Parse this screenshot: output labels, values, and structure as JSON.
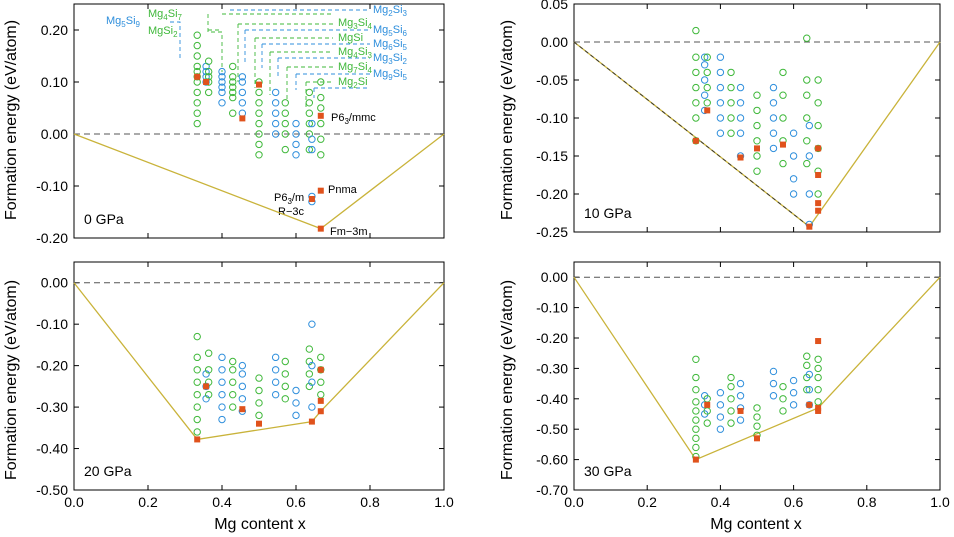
{
  "colors": {
    "green": "#3fb83a",
    "blue": "#2f8fdc",
    "red": "#e0521c",
    "hull": "#c9b33a"
  },
  "axes": {
    "xlabel": "Mg content x",
    "ylabel": "Formation energy (eV/atom)"
  },
  "legend": {
    "green": [
      "Mg4Si7",
      "MgSi2",
      "Mg3Si4",
      "MgSi",
      "Mg4Si3",
      "Mg7Si4",
      "Mg2Si"
    ],
    "blue": [
      "Mg5Si9",
      "Mg2Si3",
      "Mg5Si6",
      "Mg6Si5",
      "Mg3Si2",
      "Mg9Si5"
    ]
  },
  "annotations": [
    "P63/mmc",
    "Pnma",
    "P63/m",
    "R-3c",
    "Fm-3m"
  ],
  "chart_data": [
    {
      "type": "scatter",
      "label": "0 GPa",
      "xlim": [
        0,
        1
      ],
      "ylim": [
        -0.2,
        0.25
      ],
      "x_ticks": [
        "",
        "",
        "",
        "",
        "",
        ""
      ],
      "y_ticks": [
        "-0.20",
        "-0.10",
        "0.00",
        "0.10",
        "0.20"
      ],
      "hull": [
        [
          0,
          0
        ],
        [
          0.667,
          -0.182
        ],
        [
          1,
          0
        ]
      ],
      "series": [
        {
          "x": 0.333,
          "ys": [
            0.02,
            0.04,
            0.06,
            0.08,
            0.1,
            0.11,
            0.12,
            0.13,
            0.15,
            0.17,
            0.19
          ]
        },
        {
          "x": 0.357,
          "ys": [
            0.1,
            0.11,
            0.12,
            0.13
          ]
        },
        {
          "x": 0.364,
          "ys": [
            0.08,
            0.1,
            0.11,
            0.12,
            0.14
          ]
        },
        {
          "x": 0.4,
          "ys": [
            0.06,
            0.08,
            0.09,
            0.1,
            0.11,
            0.12
          ]
        },
        {
          "x": 0.429,
          "ys": [
            0.04,
            0.07,
            0.08,
            0.09,
            0.1,
            0.11,
            0.13
          ]
        },
        {
          "x": 0.455,
          "ys": [
            0.04,
            0.06,
            0.08,
            0.1,
            0.11
          ]
        },
        {
          "x": 0.5,
          "ys": [
            -0.04,
            -0.02,
            0.0,
            0.02,
            0.04,
            0.06,
            0.08,
            0.1
          ]
        },
        {
          "x": 0.545,
          "ys": [
            0.0,
            0.02,
            0.04,
            0.06,
            0.08
          ]
        },
        {
          "x": 0.571,
          "ys": [
            -0.03,
            0.0,
            0.02,
            0.04,
            0.06
          ]
        },
        {
          "x": 0.6,
          "ys": [
            -0.04,
            -0.02,
            0.0,
            0.02
          ]
        },
        {
          "x": 0.636,
          "ys": [
            -0.03,
            0.0,
            0.02,
            0.04,
            0.06,
            0.08
          ]
        },
        {
          "x": 0.643,
          "ys": [
            -0.13,
            -0.12,
            -0.03,
            -0.01,
            0.02
          ]
        },
        {
          "x": 0.667,
          "ys": [
            -0.04,
            -0.01,
            0.02,
            0.05,
            0.07,
            0.1
          ]
        }
      ],
      "red_points": [
        [
          0.333,
          0.11
        ],
        [
          0.357,
          0.1
        ],
        [
          0.455,
          0.03
        ],
        [
          0.5,
          0.095
        ],
        [
          0.643,
          -0.125
        ],
        [
          0.667,
          0.035
        ],
        [
          0.667,
          -0.109
        ],
        [
          0.667,
          -0.182
        ]
      ]
    },
    {
      "type": "scatter",
      "label": "10 GPa",
      "xlim": [
        0,
        1
      ],
      "ylim": [
        -0.25,
        0.05
      ],
      "x_ticks": [
        "",
        "",
        "",
        "",
        "",
        ""
      ],
      "y_ticks": [
        "-0.25",
        "-0.20",
        "-0.15",
        "-0.10",
        "-0.05",
        "0.00",
        "0.05"
      ],
      "hull": [
        [
          0,
          0
        ],
        [
          0.643,
          -0.243
        ],
        [
          1,
          0
        ]
      ],
      "series": [
        {
          "x": 0.333,
          "ys": [
            -0.13,
            -0.1,
            -0.08,
            -0.06,
            -0.04,
            -0.02,
            0.015
          ]
        },
        {
          "x": 0.357,
          "ys": [
            -0.09,
            -0.07,
            -0.05,
            -0.03,
            -0.02
          ]
        },
        {
          "x": 0.364,
          "ys": [
            -0.08,
            -0.06,
            -0.04,
            -0.02
          ]
        },
        {
          "x": 0.4,
          "ys": [
            -0.12,
            -0.1,
            -0.08,
            -0.06,
            -0.04,
            -0.02
          ]
        },
        {
          "x": 0.429,
          "ys": [
            -0.12,
            -0.1,
            -0.08,
            -0.06,
            -0.04
          ]
        },
        {
          "x": 0.455,
          "ys": [
            -0.15,
            -0.12,
            -0.1,
            -0.08,
            -0.06
          ]
        },
        {
          "x": 0.5,
          "ys": [
            -0.17,
            -0.15,
            -0.13,
            -0.11,
            -0.09,
            -0.07
          ]
        },
        {
          "x": 0.545,
          "ys": [
            -0.14,
            -0.12,
            -0.1,
            -0.08,
            -0.06
          ]
        },
        {
          "x": 0.571,
          "ys": [
            -0.16,
            -0.13,
            -0.1,
            -0.07,
            -0.04
          ]
        },
        {
          "x": 0.6,
          "ys": [
            -0.2,
            -0.18,
            -0.15,
            -0.12
          ]
        },
        {
          "x": 0.636,
          "ys": [
            -0.16,
            -0.13,
            -0.1,
            -0.07,
            -0.05,
            0.005
          ]
        },
        {
          "x": 0.643,
          "ys": [
            -0.24,
            -0.2,
            -0.15,
            -0.11
          ]
        },
        {
          "x": 0.667,
          "ys": [
            -0.2,
            -0.17,
            -0.14,
            -0.11,
            -0.08,
            -0.05
          ]
        }
      ],
      "red_points": [
        [
          0.333,
          -0.13
        ],
        [
          0.364,
          -0.09
        ],
        [
          0.455,
          -0.152
        ],
        [
          0.5,
          -0.14
        ],
        [
          0.571,
          -0.135
        ],
        [
          0.643,
          -0.243
        ],
        [
          0.667,
          -0.14
        ],
        [
          0.667,
          -0.175
        ],
        [
          0.667,
          -0.212
        ],
        [
          0.667,
          -0.222
        ]
      ]
    },
    {
      "type": "scatter",
      "label": "20 GPa",
      "xlim": [
        0,
        1
      ],
      "ylim": [
        -0.5,
        0.05
      ],
      "x_ticks": [
        "0.0",
        "0.2",
        "0.4",
        "0.6",
        "0.8",
        "1.0"
      ],
      "y_ticks": [
        "-0.50",
        "-0.40",
        "-0.30",
        "-0.20",
        "-0.10",
        "0.00"
      ],
      "hull": [
        [
          0,
          0
        ],
        [
          0.333,
          -0.378
        ],
        [
          0.643,
          -0.335
        ],
        [
          0.667,
          -0.31
        ],
        [
          1,
          0
        ]
      ],
      "series": [
        {
          "x": 0.333,
          "ys": [
            -0.36,
            -0.33,
            -0.3,
            -0.27,
            -0.24,
            -0.21,
            -0.18,
            -0.13
          ]
        },
        {
          "x": 0.357,
          "ys": [
            -0.28,
            -0.25,
            -0.22
          ]
        },
        {
          "x": 0.364,
          "ys": [
            -0.27,
            -0.24,
            -0.21,
            -0.17
          ]
        },
        {
          "x": 0.4,
          "ys": [
            -0.33,
            -0.3,
            -0.27,
            -0.24,
            -0.21,
            -0.18
          ]
        },
        {
          "x": 0.429,
          "ys": [
            -0.3,
            -0.27,
            -0.24,
            -0.21,
            -0.19
          ]
        },
        {
          "x": 0.455,
          "ys": [
            -0.31,
            -0.28,
            -0.25,
            -0.22,
            -0.2
          ]
        },
        {
          "x": 0.5,
          "ys": [
            -0.32,
            -0.29,
            -0.26,
            -0.23
          ]
        },
        {
          "x": 0.545,
          "ys": [
            -0.27,
            -0.24,
            -0.21,
            -0.18
          ]
        },
        {
          "x": 0.571,
          "ys": [
            -0.28,
            -0.25,
            -0.22,
            -0.19
          ]
        },
        {
          "x": 0.6,
          "ys": [
            -0.32,
            -0.29,
            -0.26
          ]
        },
        {
          "x": 0.636,
          "ys": [
            -0.25,
            -0.22,
            -0.19,
            -0.16
          ]
        },
        {
          "x": 0.643,
          "ys": [
            -0.3,
            -0.24,
            -0.2,
            -0.1
          ]
        },
        {
          "x": 0.667,
          "ys": [
            -0.27,
            -0.24,
            -0.21,
            -0.18
          ]
        }
      ],
      "red_points": [
        [
          0.333,
          -0.378
        ],
        [
          0.357,
          -0.25
        ],
        [
          0.455,
          -0.305
        ],
        [
          0.5,
          -0.34
        ],
        [
          0.643,
          -0.335
        ],
        [
          0.667,
          -0.21
        ],
        [
          0.667,
          -0.285
        ],
        [
          0.667,
          -0.31
        ]
      ]
    },
    {
      "type": "scatter",
      "label": "30 GPa",
      "xlim": [
        0,
        1
      ],
      "ylim": [
        -0.7,
        0.05
      ],
      "x_ticks": [
        "0.0",
        "0.2",
        "0.4",
        "0.6",
        "0.8",
        "1.0"
      ],
      "y_ticks": [
        "-0.70",
        "-0.60",
        "-0.50",
        "-0.40",
        "-0.30",
        "-0.20",
        "-0.10",
        "0.00"
      ],
      "hull": [
        [
          0,
          0
        ],
        [
          0.333,
          -0.6
        ],
        [
          0.667,
          -0.43
        ],
        [
          1,
          0
        ]
      ],
      "series": [
        {
          "x": 0.333,
          "ys": [
            -0.59,
            -0.56,
            -0.53,
            -0.5,
            -0.47,
            -0.44,
            -0.41,
            -0.37,
            -0.33,
            -0.27
          ]
        },
        {
          "x": 0.357,
          "ys": [
            -0.45,
            -0.42,
            -0.39
          ]
        },
        {
          "x": 0.364,
          "ys": [
            -0.48,
            -0.44,
            -0.4
          ]
        },
        {
          "x": 0.4,
          "ys": [
            -0.5,
            -0.46,
            -0.42,
            -0.38
          ]
        },
        {
          "x": 0.429,
          "ys": [
            -0.48,
            -0.44,
            -0.4,
            -0.36,
            -0.33
          ]
        },
        {
          "x": 0.455,
          "ys": [
            -0.47,
            -0.43,
            -0.39,
            -0.35
          ]
        },
        {
          "x": 0.5,
          "ys": [
            -0.52,
            -0.49,
            -0.46,
            -0.43
          ]
        },
        {
          "x": 0.545,
          "ys": [
            -0.39,
            -0.35,
            -0.31
          ]
        },
        {
          "x": 0.571,
          "ys": [
            -0.44,
            -0.4,
            -0.36
          ]
        },
        {
          "x": 0.6,
          "ys": [
            -0.42,
            -0.38,
            -0.34
          ]
        },
        {
          "x": 0.636,
          "ys": [
            -0.37,
            -0.33,
            -0.29,
            -0.26
          ]
        },
        {
          "x": 0.643,
          "ys": [
            -0.42,
            -0.37,
            -0.32
          ]
        },
        {
          "x": 0.667,
          "ys": [
            -0.41,
            -0.37,
            -0.33,
            -0.3,
            -0.27
          ]
        }
      ],
      "red_points": [
        [
          0.333,
          -0.6
        ],
        [
          0.364,
          -0.42
        ],
        [
          0.455,
          -0.44
        ],
        [
          0.5,
          -0.53
        ],
        [
          0.643,
          -0.42
        ],
        [
          0.667,
          -0.21
        ],
        [
          0.667,
          -0.43
        ],
        [
          0.667,
          -0.44
        ]
      ]
    }
  ],
  "blue_x": [
    0.357,
    0.4,
    0.455,
    0.545,
    0.6,
    0.643
  ]
}
